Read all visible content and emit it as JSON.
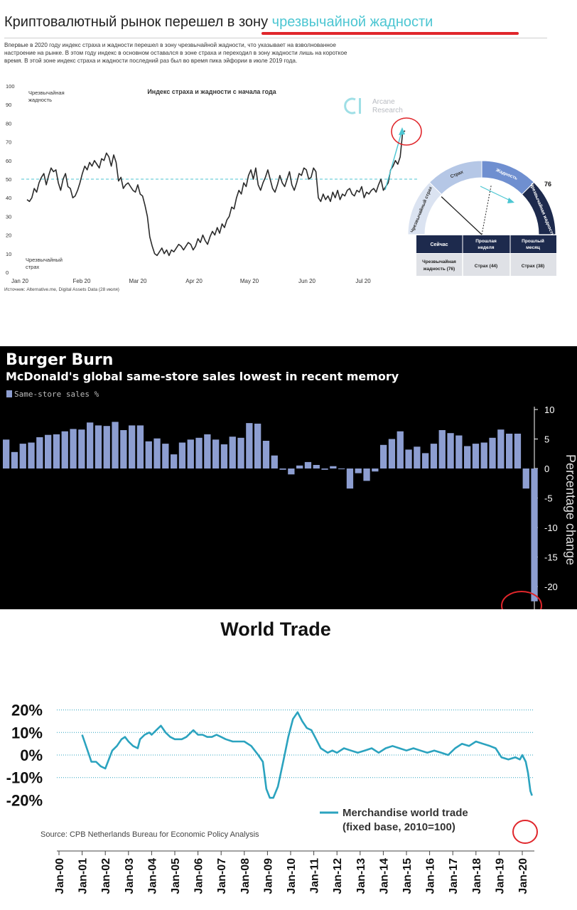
{
  "panel1": {
    "title_prefix": "Криптовалютный рынок перешел в зону ",
    "title_highlight": "чрезвычайной жадности",
    "description": "Впервые в 2020 году индекс страха и жадности перешел в зону чрезвычайной жадности, что указывает на взволнованное настроение на рынке. В этом году индекс в основном оставался в зоне страха и переходил в зону жадности лишь на короткое время. В этой зоне индекс страха и жадности последний раз был во время пика эйфории в июле 2019 года.",
    "source": "Источник: Alternative.me, Digital Assets Data (28 июля)",
    "logo_line1": "Arcane",
    "logo_line2": "Research",
    "gauge": {
      "value_label": "76",
      "segments": [
        "Чрезвычайный страх",
        "Страх",
        "Жадность",
        "Чрезвычайная жадность"
      ],
      "value": 76
    },
    "table": {
      "headers": [
        "Сейчас",
        "Прошлая неделя",
        "Прошлый месяц"
      ],
      "row": [
        "Чрезвычайная жадность (76)",
        "Страх (44)",
        "Страх (38)"
      ]
    },
    "colors": {
      "accent": "#4cc6d2",
      "line": "#2b2b2b",
      "highlight": "#e0262b",
      "navy": "#1d2a4d"
    }
  },
  "panel2": {
    "title": "Burger Burn",
    "subtitle": "McDonald's global same-store sales lowest in recent memory",
    "legend": "Same-store sales %",
    "colors": {
      "background": "#000000",
      "bar": "#8d9ed1",
      "text": "#ffffff"
    }
  },
  "panel3": {
    "title": "World Trade",
    "source": "Source: CPB Netherlands Bureau for Economic Policy Analysis",
    "legend_line1": "Merchandise world trade",
    "legend_line2": "(fixed base, 2010=100)",
    "colors": {
      "line": "#2ba3bf",
      "grid": "#2ba3bf",
      "highlight": "#e0262b"
    }
  },
  "chart_data": [
    {
      "type": "line",
      "title": "Индекс страха и жадности с начала года",
      "ylim": [
        0,
        100
      ],
      "yticks": [
        0,
        10,
        20,
        30,
        40,
        50,
        60,
        70,
        80,
        90,
        100
      ],
      "xticks": [
        "Jan 20",
        "Feb 20",
        "Mar 20",
        "Apr 20",
        "May 20",
        "Jun 20",
        "Jul 20"
      ],
      "annotations": [
        "Чрезвычайная жадность",
        "Чрезвычайный страх"
      ],
      "reference_line": 50,
      "x_start": "2020-01-01",
      "values": [
        39,
        38,
        40,
        45,
        43,
        48,
        51,
        53,
        47,
        52,
        56,
        54,
        55,
        48,
        44,
        50,
        53,
        46,
        45,
        40,
        41,
        44,
        48,
        53,
        57,
        55,
        59,
        57,
        60,
        58,
        56,
        61,
        60,
        64,
        62,
        57,
        63,
        59,
        49,
        51,
        45,
        47,
        48,
        46,
        44,
        43,
        47,
        42,
        41,
        36,
        30,
        19,
        14,
        10,
        9,
        11,
        13,
        10,
        12,
        9,
        12,
        11,
        13,
        15,
        14,
        12,
        14,
        16,
        15,
        12,
        14,
        18,
        16,
        20,
        17,
        15,
        19,
        22,
        20,
        24,
        21,
        26,
        24,
        28,
        30,
        35,
        34,
        40,
        44,
        42,
        48,
        46,
        52,
        55,
        50,
        56,
        47,
        44,
        48,
        51,
        55,
        50,
        45,
        43,
        47,
        52,
        48,
        46,
        50,
        54,
        47,
        44,
        48,
        53,
        52,
        56,
        55,
        50,
        51,
        56,
        54,
        40,
        38,
        42,
        39,
        41,
        38,
        43,
        40,
        44,
        39,
        42,
        41,
        44,
        45,
        42,
        41,
        44,
        43,
        46,
        40,
        43,
        42,
        44,
        45,
        43,
        47,
        50,
        44,
        46,
        48,
        55,
        57,
        60,
        58,
        62,
        75,
        76
      ]
    },
    {
      "type": "bar",
      "title": "Burger Burn",
      "subtitle": "McDonald's global same-store sales lowest in recent memory",
      "ylabel": "Percentage change",
      "legend": [
        "Same-store sales %"
      ],
      "ylim": [
        -23,
        10
      ],
      "yticks": [
        10,
        5,
        0,
        -5,
        -10,
        -15,
        -20
      ],
      "series": [
        {
          "name": "Same-store sales %",
          "values": [
            4.9,
            2.8,
            4.2,
            4.4,
            5.3,
            5.7,
            5.8,
            6.3,
            6.7,
            6.6,
            7.8,
            7.3,
            7.2,
            7.9,
            6.5,
            7.3,
            7.3,
            4.6,
            5.1,
            4.2,
            2.4,
            4.4,
            4.9,
            5.2,
            5.8,
            4.9,
            4.1,
            5.4,
            5.2,
            7.7,
            7.6,
            4.7,
            2.2,
            -0.2,
            -1.0,
            0.5,
            1.1,
            0.6,
            -0.2,
            0.4,
            -0.1,
            -3.4,
            -0.8,
            -2.1,
            -0.5,
            4.0,
            5.0,
            6.3,
            3.2,
            3.7,
            2.6,
            4.2,
            6.5,
            6.0,
            5.6,
            3.8,
            4.2,
            4.4,
            5.2,
            6.6,
            5.9,
            5.9,
            -3.4,
            -22.5
          ]
        }
      ]
    },
    {
      "type": "line",
      "title": "World Trade",
      "ylim": [
        -20,
        20
      ],
      "yticks": [
        "20%",
        "10%",
        "0%",
        "-10%",
        "-20%"
      ],
      "xticks": [
        "Jan-00",
        "Jan-01",
        "Jan-02",
        "Jan-03",
        "Jan-04",
        "Jan-05",
        "Jan-06",
        "Jan-07",
        "Jan-08",
        "Jan-09",
        "Jan-10",
        "Jan-11",
        "Jan-12",
        "Jan-13",
        "Jan-14",
        "Jan-15",
        "Jan-16",
        "Jan-17",
        "Jan-18",
        "Jan-19",
        "Jan-20"
      ],
      "series": [
        {
          "name": "Merchandise world trade (fixed base, 2010=100)",
          "x": [
            2001.0,
            2001.1,
            2001.3,
            2001.4,
            2001.6,
            2001.8,
            2002.0,
            2002.15,
            2002.3,
            2002.5,
            2002.7,
            2002.85,
            2003.0,
            2003.2,
            2003.4,
            2003.5,
            2003.7,
            2003.9,
            2004.0,
            2004.2,
            2004.4,
            2004.6,
            2004.8,
            2005.0,
            2005.3,
            2005.5,
            2005.8,
            2006.0,
            2006.2,
            2006.4,
            2006.6,
            2006.8,
            2007.0,
            2007.2,
            2007.5,
            2007.8,
            2008.0,
            2008.3,
            2008.6,
            2008.8,
            2008.95,
            2009.1,
            2009.25,
            2009.45,
            2009.7,
            2009.9,
            2010.1,
            2010.3,
            2010.5,
            2010.7,
            2010.9,
            2011.1,
            2011.3,
            2011.6,
            2011.8,
            2012.0,
            2012.3,
            2012.6,
            2012.9,
            2013.2,
            2013.5,
            2013.8,
            2014.1,
            2014.4,
            2014.7,
            2015.0,
            2015.3,
            2015.6,
            2015.9,
            2016.2,
            2016.5,
            2016.8,
            2017.1,
            2017.4,
            2017.7,
            2018.0,
            2018.3,
            2018.6,
            2018.85,
            2019.1,
            2019.4,
            2019.7,
            2019.9,
            2020.0,
            2020.15,
            2020.25,
            2020.35,
            2020.42
          ],
          "values": [
            9,
            6,
            0,
            -3,
            -3,
            -5,
            -6,
            -2,
            2,
            4,
            7,
            8,
            6,
            4,
            3,
            7,
            9,
            10,
            9,
            11,
            13,
            10,
            8,
            7,
            7,
            8,
            11,
            9,
            9,
            8,
            8,
            9,
            8,
            7,
            6,
            6,
            6,
            4,
            0,
            -3,
            -15,
            -19,
            -19,
            -14,
            -2,
            8,
            16,
            19,
            15,
            12,
            11,
            7,
            3,
            1,
            2,
            1,
            3,
            2,
            1,
            2,
            3,
            1,
            3,
            4,
            3,
            2,
            3,
            2,
            1,
            2,
            1,
            0,
            3,
            5,
            4,
            6,
            5,
            4,
            3,
            -1,
            -2,
            -1,
            -2,
            0,
            -3,
            -8,
            -16,
            -18
          ]
        }
      ]
    }
  ]
}
